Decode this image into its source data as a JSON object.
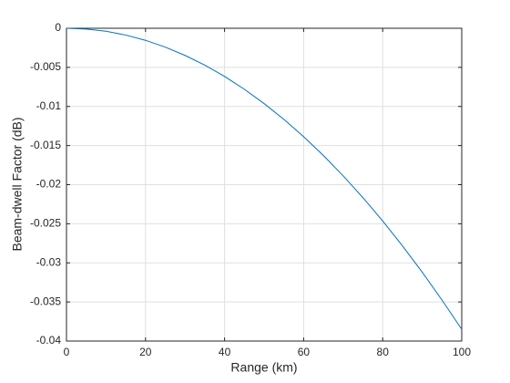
{
  "chart_data": {
    "type": "line",
    "xlabel": "Range (km)",
    "ylabel": "Beam-dwell Factor (dB)",
    "x": [
      0,
      5,
      10,
      15,
      20,
      25,
      30,
      35,
      40,
      45,
      50,
      55,
      60,
      65,
      70,
      75,
      80,
      85,
      90,
      95,
      100
    ],
    "series": [
      {
        "color": "#0072bd",
        "values": [
          0,
          -0.0001,
          -0.000385,
          -0.000866,
          -0.00154,
          -0.00241,
          -0.00347,
          -0.00472,
          -0.00616,
          -0.0078,
          -0.00963,
          -0.01165,
          -0.01386,
          -0.01627,
          -0.01887,
          -0.02166,
          -0.02464,
          -0.02782,
          -0.03119,
          -0.03475,
          -0.0385
        ]
      }
    ],
    "xlim": [
      0,
      100
    ],
    "xticks": [
      0,
      20,
      40,
      60,
      80,
      100
    ],
    "ylim": [
      -0.04,
      0
    ],
    "yticks": [
      -0.04,
      -0.035,
      -0.03,
      -0.025,
      -0.02,
      -0.015,
      -0.01,
      -0.005,
      0
    ],
    "grid": true
  }
}
